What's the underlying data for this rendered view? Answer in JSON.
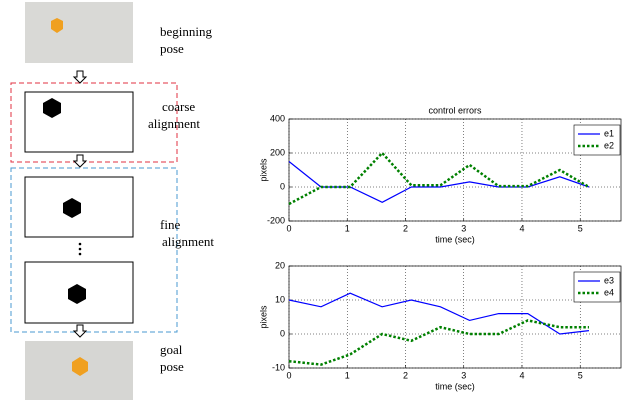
{
  "diagram": {
    "labels": [
      [
        "beginning",
        "pose"
      ],
      [
        "coarse",
        "alignment"
      ],
      [
        "fine",
        "alignment"
      ],
      [
        "goal",
        "pose"
      ]
    ]
  },
  "chart_data": [
    {
      "type": "line",
      "title": "control errors",
      "x_label": "time (sec)",
      "y_label": "pixels",
      "x": [
        0,
        0.55,
        1.05,
        1.6,
        2.1,
        2.6,
        3.1,
        3.6,
        4.1,
        4.65,
        5.15
      ],
      "series": [
        {
          "name": "e1",
          "color": "#0000ff",
          "dash": false,
          "values": [
            150,
            0,
            0,
            -90,
            0,
            0,
            30,
            0,
            0,
            60,
            0
          ]
        },
        {
          "name": "e2",
          "color": "#008000",
          "dash": true,
          "values": [
            -100,
            0,
            0,
            200,
            10,
            10,
            130,
            5,
            5,
            100,
            0
          ]
        }
      ],
      "xlim": [
        0,
        5.7
      ],
      "xticks": [
        0,
        1,
        2,
        3,
        4,
        5
      ],
      "ylim": [
        -200,
        400
      ],
      "yticks": [
        -200,
        0,
        200,
        400
      ],
      "grid": true,
      "legend": "upper-right"
    },
    {
      "type": "line",
      "x_label": "time (sec)",
      "y_label": "pixels",
      "x": [
        0,
        0.55,
        1.05,
        1.6,
        2.1,
        2.6,
        3.1,
        3.6,
        4.1,
        4.65,
        5.15
      ],
      "series": [
        {
          "name": "e3",
          "color": "#0000ff",
          "dash": false,
          "values": [
            10,
            8,
            12,
            8,
            10,
            8,
            4,
            6,
            6,
            0,
            1
          ]
        },
        {
          "name": "e4",
          "color": "#008000",
          "dash": true,
          "values": [
            -8,
            -9,
            -6,
            0,
            -2,
            2,
            0,
            0,
            4,
            2,
            2
          ]
        }
      ],
      "xlim": [
        0,
        5.7
      ],
      "xticks": [
        0,
        1,
        2,
        3,
        4,
        5
      ],
      "ylim": [
        -10,
        20
      ],
      "yticks": [
        -10,
        0,
        10,
        20
      ],
      "grid": true,
      "legend": "upper-right"
    }
  ]
}
